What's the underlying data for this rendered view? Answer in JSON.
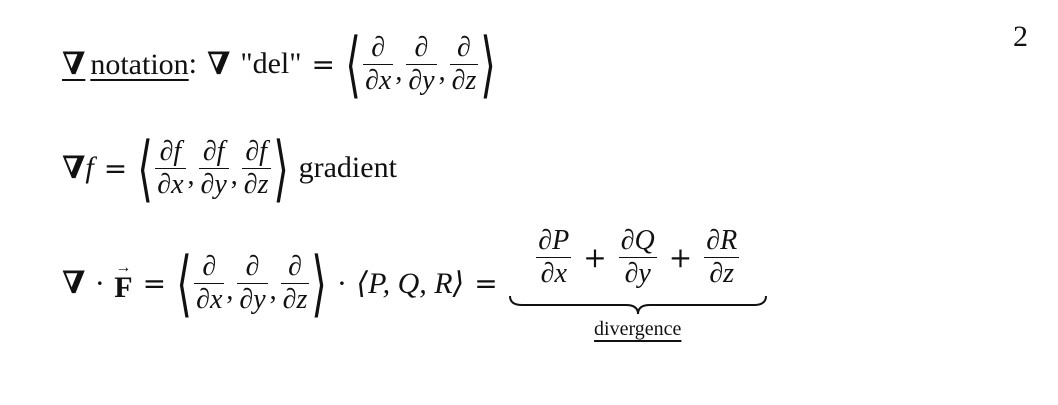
{
  "page_number": "2",
  "line1": {
    "nabla_symbol": "∇",
    "notation_word": "notation",
    "colon": ":",
    "del_label": "\"del\"",
    "equals": "=",
    "frac_num": "∂",
    "den_x": "∂x",
    "den_y": "∂y",
    "den_z": "∂z"
  },
  "line2": {
    "f": "f",
    "equals": "=",
    "num_f": "∂f",
    "den_x": "∂x",
    "den_y": "∂y",
    "den_z": "∂z",
    "gradient_label": "gradient"
  },
  "line3": {
    "dot": "·",
    "F": "F",
    "arrow": "→",
    "equals": "=",
    "frac_num": "∂",
    "den_x": "∂x",
    "den_y": "∂y",
    "den_z": "∂z",
    "pqr": "⟨P, Q, R⟩",
    "num_P": "∂P",
    "num_Q": "∂Q",
    "num_R": "∂R",
    "plus": "+",
    "divergence_label": "divergence"
  }
}
